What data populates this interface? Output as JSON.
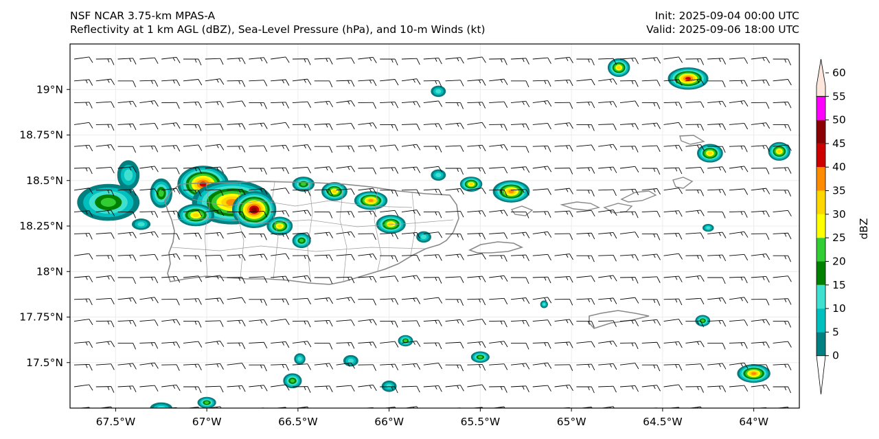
{
  "header": {
    "model": "NSF NCAR 3.75-km MPAS-A",
    "fields": "Reflectivity at 1 km AGL (dBZ), Sea-Level Pressure (hPa), and 10-m Winds (kt)",
    "init": "Init: 2025-09-04 00:00 UTC",
    "valid": "Valid: 2025-09-06 18:00 UTC"
  },
  "map": {
    "lon_range": [
      -67.75,
      -63.75
    ],
    "lat_range": [
      17.25,
      19.25
    ],
    "lat_ticks": [
      {
        "value": 19.0,
        "label": "19°N"
      },
      {
        "value": 18.75,
        "label": "18.75°N"
      },
      {
        "value": 18.5,
        "label": "18.5°N"
      },
      {
        "value": 18.25,
        "label": "18.25°N"
      },
      {
        "value": 18.0,
        "label": "18°N"
      },
      {
        "value": 17.75,
        "label": "17.75°N"
      },
      {
        "value": 17.5,
        "label": "17.5°N"
      }
    ],
    "lon_ticks": [
      {
        "value": -67.5,
        "label": "67.5°W"
      },
      {
        "value": -67.0,
        "label": "67°W"
      },
      {
        "value": -66.5,
        "label": "66.5°W"
      },
      {
        "value": -66.0,
        "label": "66°W"
      },
      {
        "value": -65.5,
        "label": "65.5°W"
      },
      {
        "value": -65.0,
        "label": "65°W"
      },
      {
        "value": -64.5,
        "label": "64.5°W"
      },
      {
        "value": -64.0,
        "label": "64°W"
      }
    ],
    "reflectivity_cells": [
      {
        "lon": -67.54,
        "lat": 18.38,
        "rx": 0.17,
        "ry": 0.1,
        "max_dbz": 22
      },
      {
        "lon": -67.36,
        "lat": 18.26,
        "rx": 0.05,
        "ry": 0.03,
        "max_dbz": 12
      },
      {
        "lon": -67.43,
        "lat": 18.53,
        "rx": 0.06,
        "ry": 0.08,
        "max_dbz": 12
      },
      {
        "lon": -67.25,
        "lat": 18.43,
        "rx": 0.06,
        "ry": 0.08,
        "max_dbz": 22
      },
      {
        "lon": -67.02,
        "lat": 18.48,
        "rx": 0.14,
        "ry": 0.1,
        "max_dbz": 44
      },
      {
        "lon": -66.86,
        "lat": 18.38,
        "rx": 0.22,
        "ry": 0.12,
        "max_dbz": 38
      },
      {
        "lon": -66.74,
        "lat": 18.34,
        "rx": 0.12,
        "ry": 0.1,
        "max_dbz": 48
      },
      {
        "lon": -67.06,
        "lat": 18.31,
        "rx": 0.1,
        "ry": 0.06,
        "max_dbz": 33
      },
      {
        "lon": -66.6,
        "lat": 18.25,
        "rx": 0.07,
        "ry": 0.05,
        "max_dbz": 33
      },
      {
        "lon": -66.48,
        "lat": 18.17,
        "rx": 0.05,
        "ry": 0.04,
        "max_dbz": 22
      },
      {
        "lon": -66.47,
        "lat": 18.48,
        "rx": 0.06,
        "ry": 0.04,
        "max_dbz": 22
      },
      {
        "lon": -66.3,
        "lat": 18.44,
        "rx": 0.07,
        "ry": 0.05,
        "max_dbz": 33
      },
      {
        "lon": -66.1,
        "lat": 18.39,
        "rx": 0.09,
        "ry": 0.05,
        "max_dbz": 38
      },
      {
        "lon": -65.99,
        "lat": 18.26,
        "rx": 0.08,
        "ry": 0.05,
        "max_dbz": 33
      },
      {
        "lon": -65.81,
        "lat": 18.19,
        "rx": 0.04,
        "ry": 0.03,
        "max_dbz": 12
      },
      {
        "lon": -65.73,
        "lat": 18.53,
        "rx": 0.04,
        "ry": 0.03,
        "max_dbz": 12
      },
      {
        "lon": -65.55,
        "lat": 18.48,
        "rx": 0.06,
        "ry": 0.04,
        "max_dbz": 33
      },
      {
        "lon": -65.33,
        "lat": 18.44,
        "rx": 0.1,
        "ry": 0.06,
        "max_dbz": 38
      },
      {
        "lon": -65.73,
        "lat": 18.99,
        "rx": 0.04,
        "ry": 0.03,
        "max_dbz": 12
      },
      {
        "lon": -64.74,
        "lat": 19.12,
        "rx": 0.06,
        "ry": 0.05,
        "max_dbz": 33
      },
      {
        "lon": -64.36,
        "lat": 19.06,
        "rx": 0.11,
        "ry": 0.06,
        "max_dbz": 44
      },
      {
        "lon": -64.24,
        "lat": 18.65,
        "rx": 0.07,
        "ry": 0.05,
        "max_dbz": 33
      },
      {
        "lon": -63.86,
        "lat": 18.66,
        "rx": 0.06,
        "ry": 0.05,
        "max_dbz": 33
      },
      {
        "lon": -64.28,
        "lat": 17.73,
        "rx": 0.04,
        "ry": 0.03,
        "max_dbz": 22
      },
      {
        "lon": -65.91,
        "lat": 17.62,
        "rx": 0.04,
        "ry": 0.03,
        "max_dbz": 22
      },
      {
        "lon": -65.5,
        "lat": 17.53,
        "rx": 0.05,
        "ry": 0.03,
        "max_dbz": 22
      },
      {
        "lon": -66.21,
        "lat": 17.51,
        "rx": 0.04,
        "ry": 0.03,
        "max_dbz": 12
      },
      {
        "lon": -66.49,
        "lat": 17.52,
        "rx": 0.03,
        "ry": 0.03,
        "max_dbz": 12
      },
      {
        "lon": -66.53,
        "lat": 17.4,
        "rx": 0.05,
        "ry": 0.04,
        "max_dbz": 22
      },
      {
        "lon": -66.0,
        "lat": 17.37,
        "rx": 0.04,
        "ry": 0.03,
        "max_dbz": 12
      },
      {
        "lon": -64.0,
        "lat": 17.44,
        "rx": 0.09,
        "ry": 0.05,
        "max_dbz": 38
      },
      {
        "lon": -65.15,
        "lat": 17.82,
        "rx": 0.02,
        "ry": 0.02,
        "max_dbz": 12
      },
      {
        "lon": -64.25,
        "lat": 18.24,
        "rx": 0.03,
        "ry": 0.02,
        "max_dbz": 12
      },
      {
        "lon": -67.25,
        "lat": 17.25,
        "rx": 0.06,
        "ry": 0.03,
        "max_dbz": 12
      },
      {
        "lon": -67.0,
        "lat": 17.28,
        "rx": 0.05,
        "ry": 0.03,
        "max_dbz": 22
      }
    ]
  },
  "colorbar": {
    "label": "dBZ",
    "levels": [
      0,
      5,
      10,
      15,
      20,
      25,
      30,
      35,
      40,
      45,
      50,
      55,
      60
    ],
    "level_labels": [
      "0",
      "5",
      "10",
      "15",
      "20",
      "25",
      "30",
      "35",
      "40",
      "45",
      "50",
      "55",
      "60"
    ],
    "colors": [
      "#008080",
      "#00bfbf",
      "#40e0d0",
      "#008000",
      "#32cd32",
      "#ffff00",
      "#ffd700",
      "#ff8c00",
      "#cc0000",
      "#8b0000",
      "#ff00ff",
      "#fde6dc"
    ]
  }
}
